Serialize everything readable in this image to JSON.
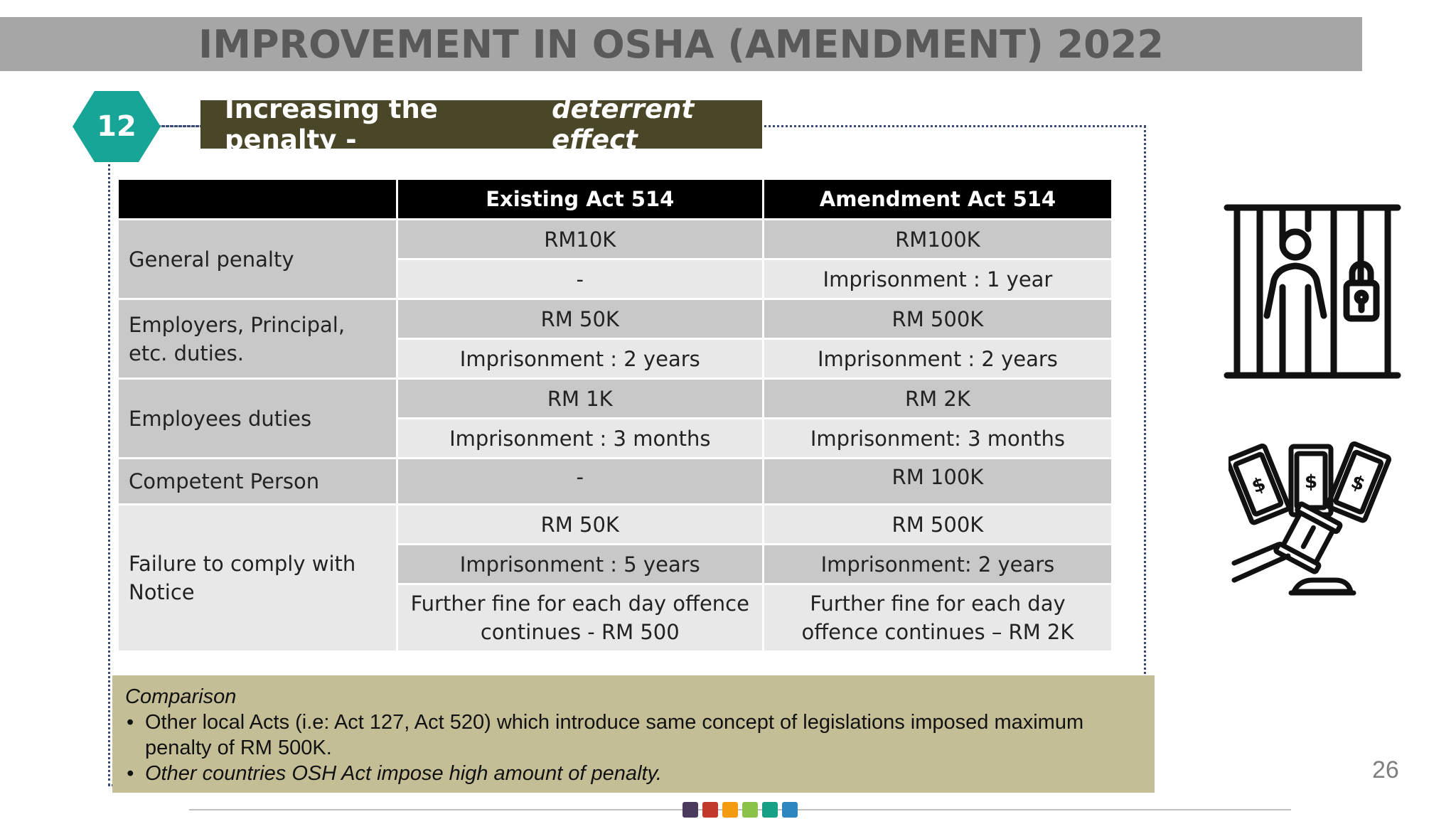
{
  "title": "IMPROVEMENT IN OSHA (AMENDMENT) 2022",
  "section_number": "12",
  "section_title": "Increasing the penalty -",
  "section_title_emphasis": "deterrent effect",
  "table": {
    "headers": [
      "",
      "Existing Act 514",
      "Amendment Act 514"
    ],
    "rows": [
      {
        "label": "General penalty",
        "items": [
          {
            "existing": "RM10K",
            "amendment": "RM100K"
          },
          {
            "existing": "-",
            "amendment": "Imprisonment : 1 year"
          }
        ]
      },
      {
        "label": "Employers, Principal, etc. duties.",
        "items": [
          {
            "existing": "RM 50K",
            "amendment": "RM 500K"
          },
          {
            "existing": "Imprisonment : 2 years",
            "amendment": "Imprisonment : 2 years"
          }
        ]
      },
      {
        "label": "Employees duties",
        "items": [
          {
            "existing": "RM 1K",
            "amendment": "RM 2K"
          },
          {
            "existing": "Imprisonment : 3 months",
            "amendment": "Imprisonment: 3 months"
          }
        ]
      },
      {
        "label": "Competent Person",
        "items": [
          {
            "existing": "-",
            "amendment": "RM 100K"
          }
        ]
      },
      {
        "label": "Failure to comply with Notice",
        "items": [
          {
            "existing": "RM 50K",
            "amendment": "RM 500K"
          },
          {
            "existing": "Imprisonment : 5 years",
            "amendment": "Imprisonment: 2 years"
          },
          {
            "existing": "Further fine for each day offence continues - RM 500",
            "amendment": "Further fine for each day offence continues – RM 2K"
          }
        ]
      }
    ]
  },
  "comparison": {
    "title": "Comparison",
    "bullets": [
      "Other local Acts (i.e: Act 127, Act 520) which introduce same concept of legislations imposed maximum penalty of RM 500K.",
      "Other countries OSH Act impose high amount of penalty."
    ]
  },
  "page_number": "26",
  "colors": {
    "title_bar": "#a6a6a6",
    "hexagon": "#17a597",
    "subtitle_bg": "#4a4628",
    "comparison_bg": "#c4be96",
    "footer_swatches": [
      "#4b3a5e",
      "#c0392b",
      "#f39c12",
      "#8bc34a",
      "#16a085",
      "#2e86c1"
    ]
  },
  "icons": [
    "prisoner-behind-bars-icon",
    "gavel-money-icon"
  ]
}
